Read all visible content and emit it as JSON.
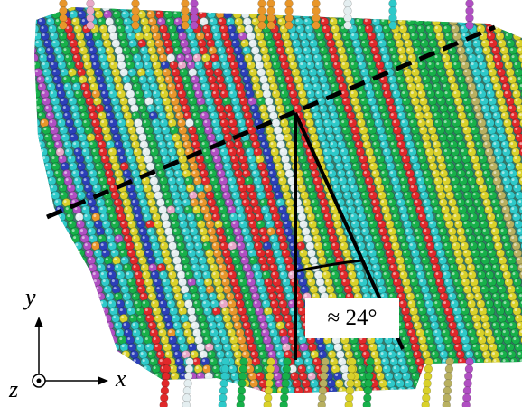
{
  "figure": {
    "angle_label": "≈ 24°",
    "axes": {
      "x": "x",
      "y": "y",
      "z": "z"
    },
    "colors": {
      "cyan": "#2ec9c9",
      "green": "#17b04a",
      "yellow": "#d9d12a",
      "red": "#e0282a",
      "orange": "#e8962a",
      "purple": "#b04fc2",
      "blue": "#2b3fb8",
      "pink": "#e8a8c8",
      "white": "#e4eef0",
      "olive": "#b8b060"
    }
  }
}
